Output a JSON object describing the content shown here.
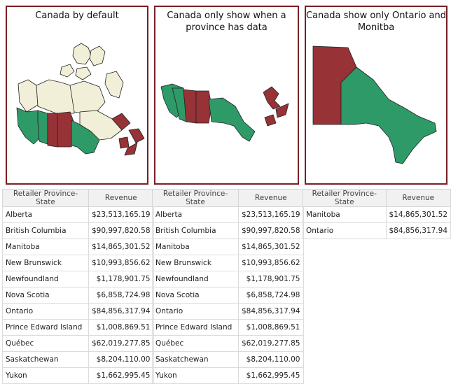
{
  "panels": [
    {
      "title": "Canada by default"
    },
    {
      "title": "Canada only show when a province has data"
    },
    {
      "title": "Canada show only Ontario and Monitba"
    }
  ],
  "colors": {
    "highlight": "#973237",
    "data": "#2e9a68",
    "empty": "#f2efd9",
    "border": "#7a1f25"
  },
  "tables": [
    {
      "headers": [
        "Retailer Province-State",
        "Revenue"
      ],
      "rows": [
        [
          "Alberta",
          "$23,513,165.19"
        ],
        [
          "British Columbia",
          "$90,997,820.58"
        ],
        [
          "Manitoba",
          "$14,865,301.52"
        ],
        [
          "New Brunswick",
          "$10,993,856.62"
        ],
        [
          "Newfoundland",
          "$1,178,901.75"
        ],
        [
          "Nova Scotia",
          "$6,858,724.98"
        ],
        [
          "Ontario",
          "$84,856,317.94"
        ],
        [
          "Prince Edward Island",
          "$1,008,869.51"
        ],
        [
          "Québec",
          "$62,019,277.85"
        ],
        [
          "Saskatchewan",
          "$8,204,110.00"
        ],
        [
          "Yukon",
          "$1,662,995.45"
        ]
      ]
    },
    {
      "headers": [
        "Retailer Province-State",
        "Revenue"
      ],
      "rows": [
        [
          "Alberta",
          "$23,513,165.19"
        ],
        [
          "British Columbia",
          "$90,997,820.58"
        ],
        [
          "Manitoba",
          "$14,865,301.52"
        ],
        [
          "New Brunswick",
          "$10,993,856.62"
        ],
        [
          "Newfoundland",
          "$1,178,901.75"
        ],
        [
          "Nova Scotia",
          "$6,858,724.98"
        ],
        [
          "Ontario",
          "$84,856,317.94"
        ],
        [
          "Prince Edward Island",
          "$1,008,869.51"
        ],
        [
          "Québec",
          "$62,019,277.85"
        ],
        [
          "Saskatchewan",
          "$8,204,110.00"
        ],
        [
          "Yukon",
          "$1,662,995.45"
        ]
      ]
    },
    {
      "headers": [
        "Retailer Province-State",
        "Revenue"
      ],
      "rows": [
        [
          "Manitoba",
          "$14,865,301.52"
        ],
        [
          "Ontario",
          "$84,856,317.94"
        ]
      ]
    }
  ]
}
